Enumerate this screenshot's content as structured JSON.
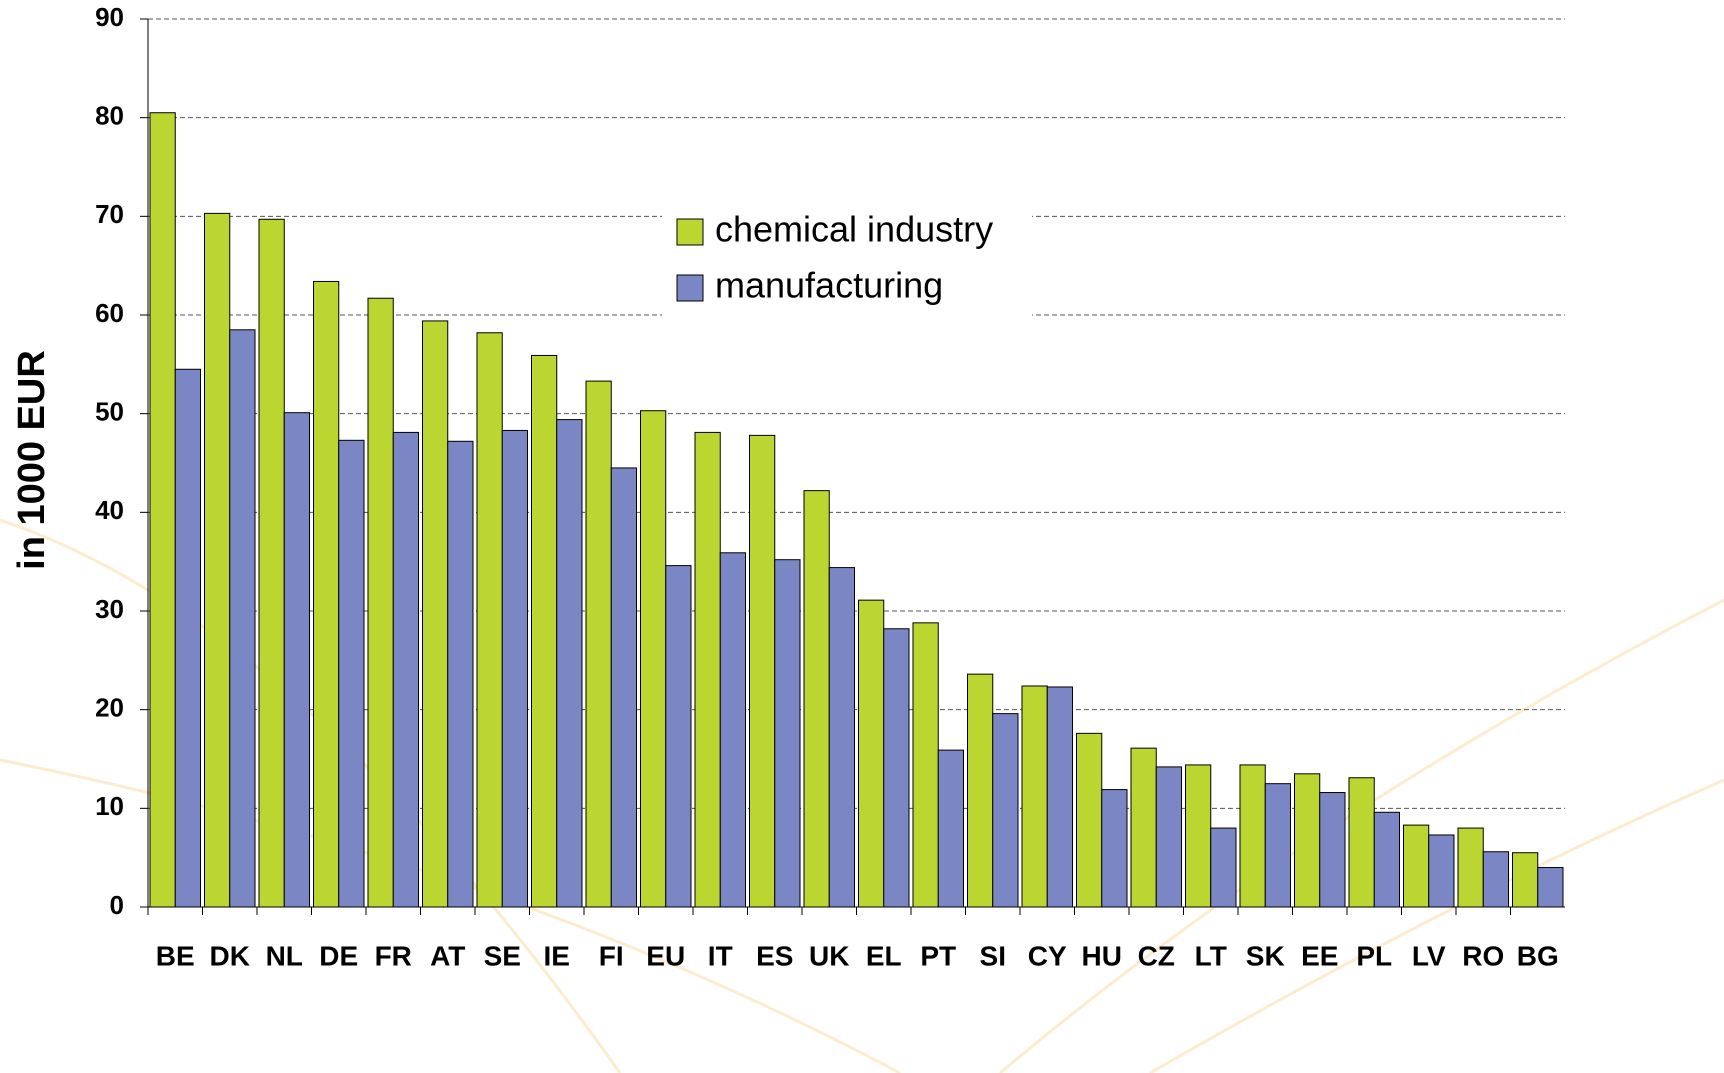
{
  "chart_data": {
    "type": "bar",
    "y_label": "in 1000 EUR",
    "categories": [
      "BE",
      "DK",
      "NL",
      "DE",
      "FR",
      "AT",
      "SE",
      "IE",
      "FI",
      "EU",
      "IT",
      "ES",
      "UK",
      "EL",
      "PT",
      "SI",
      "CY",
      "HU",
      "CZ",
      "LT",
      "SK",
      "EE",
      "PL",
      "LV",
      "RO",
      "BG"
    ],
    "series": [
      {
        "name": "chemical industry",
        "color": "#bcd631",
        "values": [
          80.5,
          70.3,
          69.7,
          63.4,
          61.7,
          59.4,
          58.2,
          55.9,
          53.3,
          50.3,
          48.1,
          47.8,
          42.2,
          31.1,
          28.8,
          23.6,
          22.4,
          17.6,
          16.1,
          14.4,
          14.4,
          13.5,
          13.1,
          8.3,
          8.0,
          5.5
        ]
      },
      {
        "name": "manufacturing",
        "color": "#7b86c4",
        "values": [
          54.5,
          58.5,
          50.1,
          47.3,
          48.1,
          47.2,
          48.3,
          49.4,
          44.5,
          34.6,
          35.9,
          35.2,
          34.4,
          28.2,
          15.9,
          19.6,
          22.3,
          11.9,
          14.2,
          8.0,
          12.5,
          11.6,
          9.6,
          7.3,
          5.6,
          4.0
        ]
      }
    ],
    "ylim": [
      0,
      90
    ],
    "yticks": [
      0,
      10,
      20,
      30,
      40,
      50,
      60,
      70,
      80,
      90
    ],
    "grid": true
  }
}
